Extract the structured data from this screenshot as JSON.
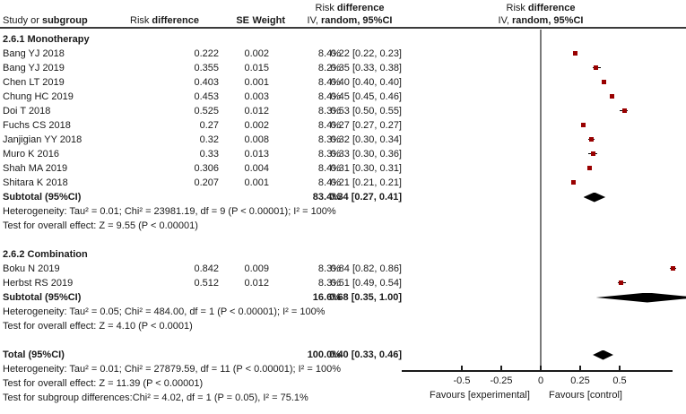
{
  "colors": {
    "marker": "#990000",
    "diamond": "#000000",
    "accent_rule": "#3a3a3a"
  },
  "header": {
    "study_a": "Study or",
    "study_b": "subgroup",
    "rd_a": "Risk",
    "rd_b": "difference",
    "se": "SE",
    "weight": "Weight",
    "ci1_a": "Risk",
    "ci1_b": "difference",
    "ci2_a": "IV,",
    "ci2_b": "random, 95%CI"
  },
  "g1": {
    "label": "2.6.1 Monotherapy",
    "studies": [
      {
        "name": "Bang YJ 2018",
        "rd": "0.222",
        "se": "0.002",
        "w": "8.4%",
        "ci": "0.22 [0.22, 0.23]"
      },
      {
        "name": "Bang YJ 2019",
        "rd": "0.355",
        "se": "0.015",
        "w": "8.2%",
        "ci": "0.35 [0.33, 0.38]"
      },
      {
        "name": "Chen LT 2019",
        "rd": "0.403",
        "se": "0.001",
        "w": "8.4%",
        "ci": "0.40 [0.40, 0.40]"
      },
      {
        "name": "Chung HC 2019",
        "rd": "0.453",
        "se": "0.003",
        "w": "8.4%",
        "ci": "0.45 [0.45, 0.46]"
      },
      {
        "name": "Doi T 2018",
        "rd": "0.525",
        "se": "0.012",
        "w": "8.3%",
        "ci": "0.53 [0.50, 0.55]"
      },
      {
        "name": "Fuchs CS 2018",
        "rd": "0.27",
        "se": "0.002",
        "w": "8.4%",
        "ci": "0.27 [0.27, 0.27]"
      },
      {
        "name": "Janjigian YY 2018",
        "rd": "0.32",
        "se": "0.008",
        "w": "8.3%",
        "ci": "0.32 [0.30, 0.34]"
      },
      {
        "name": "Muro K 2016",
        "rd": "0.33",
        "se": "0.013",
        "w": "8.3%",
        "ci": "0.33 [0.30, 0.36]"
      },
      {
        "name": "Shah MA 2019",
        "rd": "0.306",
        "se": "0.004",
        "w": "8.4%",
        "ci": "0.31 [0.30, 0.31]"
      },
      {
        "name": "Shitara K 2018",
        "rd": "0.207",
        "se": "0.001",
        "w": "8.4%",
        "ci": "0.21 [0.21, 0.21]"
      }
    ],
    "subtotal_label": "Subtotal (95%CI)",
    "subtotal_w": "83.4%",
    "subtotal_ci": "0.34 [0.27, 0.41]",
    "het": "Heterogeneity: Tau² = 0.01; Chi² = 23981.19, df = 9 (P < 0.00001); I² = 100%",
    "test": "Test for overall effect: Z = 9.55 (P < 0.00001)"
  },
  "g2": {
    "label": "2.6.2 Combination",
    "studies": [
      {
        "name": "Boku N 2019",
        "rd": "0.842",
        "se": "0.009",
        "w": "8.3%",
        "ci": "0.84 [0.82, 0.86]"
      },
      {
        "name": "Herbst RS 2019",
        "rd": "0.512",
        "se": "0.012",
        "w": "8.3%",
        "ci": "0.51 [0.49, 0.54]"
      }
    ],
    "subtotal_label": "Subtotal (95%CI)",
    "subtotal_w": "16.6%",
    "subtotal_ci": "0.68 [0.35, 1.00]",
    "het": "Heterogeneity: Tau² = 0.05; Chi² = 484.00, df = 1 (P < 0.00001); I² = 100%",
    "test": "Test for overall effect: Z = 4.10 (P < 0.0001)"
  },
  "total": {
    "label": "Total (95%CI)",
    "w": "100.0%",
    "ci": "0.40 [0.33, 0.46]",
    "het": "Heterogeneity: Tau² = 0.01; Chi² = 27879.59, df = 11 (P < 0.00001); I² = 100%",
    "test": "Test for overall effect: Z = 11.39 (P < 0.00001)",
    "subdiff": "Test for subgroup differences:Chi² = 4.02, df = 1 (P = 0.05), I² = 75.1%"
  },
  "axis": {
    "tick_labels": [
      "-0.5",
      "-0.25",
      "0",
      "0.25",
      "0.5"
    ],
    "favours_left": "Favours [experimental]",
    "favours_right": "Favours [control]"
  },
  "chart_data": {
    "type": "scatter",
    "subtype": "forest_plot",
    "title": "Risk difference — IV, random, 95%CI",
    "effect_measure": "Risk difference",
    "model": "IV, random, 95%CI",
    "xlim": [
      -0.88,
      0.84
    ],
    "x_ticks": [
      -0.5,
      -0.25,
      0,
      0.25,
      0.5
    ],
    "x_axis_labels": {
      "left": "Favours [experimental]",
      "right": "Favours [control]"
    },
    "groups": [
      {
        "name": "2.6.1 Monotherapy",
        "studies": [
          {
            "study": "Bang YJ 2018",
            "risk_difference": 0.222,
            "se": 0.002,
            "weight_pct": 8.4,
            "estimate": 0.22,
            "ci": [
              0.22,
              0.23
            ]
          },
          {
            "study": "Bang YJ 2019",
            "risk_difference": 0.355,
            "se": 0.015,
            "weight_pct": 8.2,
            "estimate": 0.35,
            "ci": [
              0.33,
              0.38
            ]
          },
          {
            "study": "Chen LT 2019",
            "risk_difference": 0.403,
            "se": 0.001,
            "weight_pct": 8.4,
            "estimate": 0.4,
            "ci": [
              0.4,
              0.4
            ]
          },
          {
            "study": "Chung HC 2019",
            "risk_difference": 0.453,
            "se": 0.003,
            "weight_pct": 8.4,
            "estimate": 0.45,
            "ci": [
              0.45,
              0.46
            ]
          },
          {
            "study": "Doi T 2018",
            "risk_difference": 0.525,
            "se": 0.012,
            "weight_pct": 8.3,
            "estimate": 0.53,
            "ci": [
              0.5,
              0.55
            ]
          },
          {
            "study": "Fuchs CS 2018",
            "risk_difference": 0.27,
            "se": 0.002,
            "weight_pct": 8.4,
            "estimate": 0.27,
            "ci": [
              0.27,
              0.27
            ]
          },
          {
            "study": "Janjigian YY 2018",
            "risk_difference": 0.32,
            "se": 0.008,
            "weight_pct": 8.3,
            "estimate": 0.32,
            "ci": [
              0.3,
              0.34
            ]
          },
          {
            "study": "Muro K 2016",
            "risk_difference": 0.33,
            "se": 0.013,
            "weight_pct": 8.3,
            "estimate": 0.33,
            "ci": [
              0.3,
              0.36
            ]
          },
          {
            "study": "Shah MA 2019",
            "risk_difference": 0.306,
            "se": 0.004,
            "weight_pct": 8.4,
            "estimate": 0.31,
            "ci": [
              0.3,
              0.31
            ]
          },
          {
            "study": "Shitara K 2018",
            "risk_difference": 0.207,
            "se": 0.001,
            "weight_pct": 8.4,
            "estimate": 0.21,
            "ci": [
              0.21,
              0.21
            ]
          }
        ],
        "subtotal": {
          "weight_pct": 83.4,
          "estimate": 0.34,
          "ci": [
            0.27,
            0.41
          ]
        }
      },
      {
        "name": "2.6.2 Combination",
        "studies": [
          {
            "study": "Boku N 2019",
            "risk_difference": 0.842,
            "se": 0.009,
            "weight_pct": 8.3,
            "estimate": 0.84,
            "ci": [
              0.82,
              0.86
            ]
          },
          {
            "study": "Herbst RS 2019",
            "risk_difference": 0.512,
            "se": 0.012,
            "weight_pct": 8.3,
            "estimate": 0.51,
            "ci": [
              0.49,
              0.54
            ]
          }
        ],
        "subtotal": {
          "weight_pct": 16.6,
          "estimate": 0.68,
          "ci": [
            0.35,
            1.0
          ]
        }
      }
    ],
    "total": {
      "weight_pct": 100.0,
      "estimate": 0.4,
      "ci": [
        0.33,
        0.46
      ]
    }
  }
}
